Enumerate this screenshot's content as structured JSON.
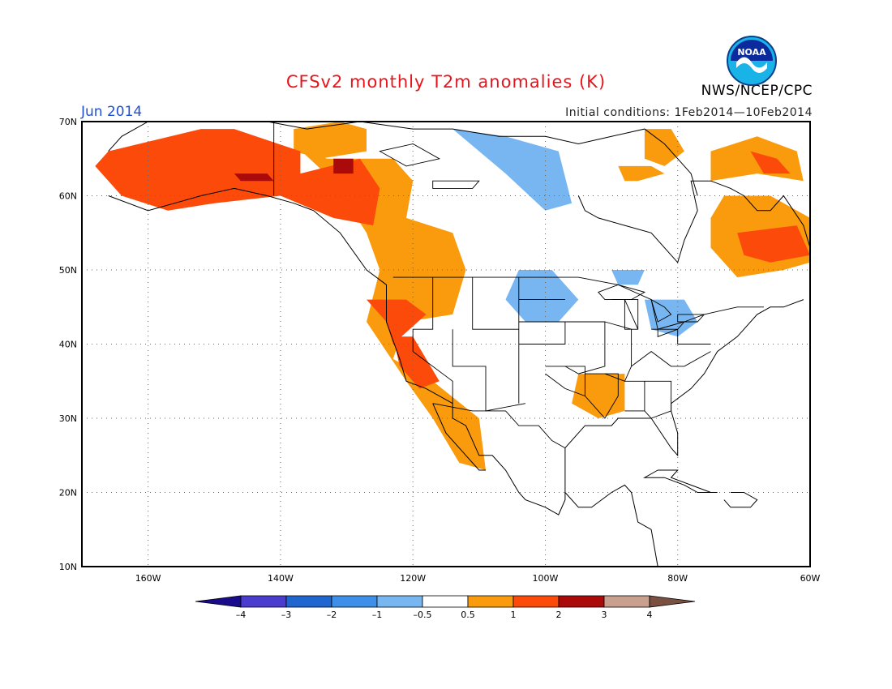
{
  "title": "CFSv2 monthly T2m anomalies (K)",
  "month": "Jun 2014",
  "initial_conditions": "Initial conditions: 1Feb2014—10Feb2014",
  "organization": "NWS/NCEP/CPC",
  "logo_text": "NOAA",
  "colors": {
    "title": "#e8141b",
    "month": "#1f4fd6",
    "bins": [
      "#1a0b8c",
      "#4a3ccf",
      "#1f66d1",
      "#3e8fe8",
      "#78b6f2",
      "#ffffff",
      "#f99b0c",
      "#fc4a0a",
      "#ab0a0a",
      "#c9a08e",
      "#7a5040"
    ]
  },
  "map": {
    "projection": "lat-lon",
    "lon_range": [
      -170,
      -60
    ],
    "lat_range": [
      10,
      70
    ],
    "lat_ticks": [
      "10N",
      "20N",
      "30N",
      "40N",
      "50N",
      "60N",
      "70N"
    ],
    "lon_ticks": [
      "160W",
      "140W",
      "120W",
      "100W",
      "80W",
      "60W"
    ],
    "grid": "dotted"
  },
  "colorbar": {
    "labels": [
      "–4",
      "–3",
      "–2",
      "–1",
      "–0.5",
      "0.5",
      "1",
      "2",
      "3",
      "4"
    ]
  },
  "anomaly_regions": [
    {
      "bin": 7,
      "lons": [
        -166,
        -152,
        -147,
        -137,
        -137,
        -128,
        -125,
        -126,
        -132,
        -140,
        -150,
        -157,
        -164,
        -168
      ],
      "lats": [
        66,
        69,
        69,
        66,
        63,
        65,
        61,
        56,
        57,
        60,
        59,
        58,
        60,
        64
      ]
    },
    {
      "bin": 7,
      "lons": [
        -127,
        -121,
        -118,
        -123,
        -124
      ],
      "lats": [
        46,
        46,
        44,
        40,
        43
      ]
    },
    {
      "bin": 7,
      "lons": [
        -123,
        -120,
        -116,
        -119,
        -122
      ],
      "lats": [
        41,
        41,
        35,
        34,
        37
      ]
    },
    {
      "bin": 7,
      "lons": [
        -71,
        -62,
        -60,
        -66,
        -70
      ],
      "lats": [
        55,
        56,
        52,
        51,
        52
      ]
    },
    {
      "bin": 7,
      "lons": [
        -69,
        -65,
        -63,
        -67
      ],
      "lats": [
        66,
        65,
        63,
        63
      ]
    },
    {
      "bin": 8,
      "lons": [
        -147,
        -142,
        -141,
        -146
      ],
      "lats": [
        63,
        63,
        62,
        62
      ]
    },
    {
      "bin": 8,
      "lons": [
        -132,
        -129,
        -129,
        -132
      ],
      "lats": [
        65,
        65,
        63,
        63
      ]
    },
    {
      "bin": 6,
      "lons": [
        -138,
        -133,
        -123,
        -120,
        -121,
        -114,
        -112,
        -114,
        -121,
        -123,
        -117,
        -110,
        -109,
        -113,
        -117,
        -121,
        -127,
        -125,
        -127,
        -132
      ],
      "lats": [
        67,
        65,
        65,
        62,
        57,
        55,
        50,
        44,
        43,
        38,
        35,
        30,
        23,
        24,
        30,
        35,
        43,
        50,
        55,
        62
      ]
    },
    {
      "bin": 6,
      "lons": [
        -138,
        -131,
        -127,
        -127,
        -134,
        -138
      ],
      "lats": [
        69,
        70,
        69,
        66,
        65,
        66
      ]
    },
    {
      "bin": 6,
      "lons": [
        -73,
        -66,
        -60,
        -60,
        -64,
        -71,
        -75,
        -75
      ],
      "lats": [
        60,
        60,
        57,
        51,
        50,
        49,
        53,
        57
      ]
    },
    {
      "bin": 6,
      "lons": [
        -75,
        -68,
        -62,
        -61,
        -68,
        -75
      ],
      "lats": [
        66,
        68,
        66,
        62,
        63,
        62
      ]
    },
    {
      "bin": 6,
      "lons": [
        -95,
        -88,
        -88,
        -92,
        -96
      ],
      "lats": [
        36,
        36,
        31,
        30,
        32
      ]
    },
    {
      "bin": 6,
      "lons": [
        -85,
        -81,
        -79,
        -82,
        -85
      ],
      "lats": [
        69,
        69,
        66,
        64,
        65
      ]
    },
    {
      "bin": 6,
      "lons": [
        -89,
        -84,
        -82,
        -86,
        -88
      ],
      "lats": [
        64,
        64,
        63,
        62,
        62
      ]
    },
    {
      "bin": 4,
      "lons": [
        -114,
        -106,
        -98,
        -96,
        -100,
        -106
      ],
      "lats": [
        69,
        68,
        66,
        59,
        58,
        63
      ]
    },
    {
      "bin": 4,
      "lons": [
        -104,
        -99,
        -95,
        -98,
        -103,
        -106
      ],
      "lats": [
        50,
        50,
        46,
        43,
        43,
        46
      ]
    },
    {
      "bin": 4,
      "lons": [
        -85,
        -79,
        -77,
        -80,
        -84
      ],
      "lats": [
        46,
        46,
        43,
        41,
        42
      ]
    },
    {
      "bin": 4,
      "lons": [
        -90,
        -85,
        -86,
        -89
      ],
      "lats": [
        50,
        50,
        48,
        48
      ]
    }
  ],
  "coastlines": [
    {
      "lons": [
        -166,
        -160,
        -156,
        -152,
        -147,
        -142,
        -138,
        -135,
        -131,
        -127,
        -124,
        -124,
        -122,
        -121,
        -118,
        -114,
        -114,
        -112,
        -110,
        -108,
        -106,
        -104,
        -103,
        -100,
        -98,
        -97,
        -97,
        -94,
        -90,
        -89,
        -86,
        -84,
        -81,
        -80,
        -80,
        -81,
        -81,
        -78,
        -76,
        -74,
        -71,
        -70,
        -68,
        -66,
        -64,
        -61
      ],
      "lats": [
        60,
        58,
        59,
        60,
        61,
        60,
        59,
        58,
        55,
        50,
        48,
        43,
        38,
        35,
        34,
        32,
        30,
        29,
        25,
        25,
        23,
        20,
        19,
        18,
        17,
        19,
        26,
        29,
        29,
        30,
        30,
        30,
        26,
        25,
        28,
        31,
        32,
        34,
        36,
        39,
        41,
        42,
        44,
        45,
        45,
        46
      ]
    },
    {
      "lons": [
        -117,
        -115,
        -112,
        -110,
        -109
      ],
      "lats": [
        32,
        28,
        25,
        23,
        23
      ]
    },
    {
      "lons": [
        -97,
        -95,
        -93,
        -90,
        -88,
        -87,
        -86,
        -84,
        -83
      ],
      "lats": [
        20,
        18,
        18,
        20,
        21,
        20,
        16,
        15,
        10
      ]
    },
    {
      "lons": [
        -166,
        -164,
        -160,
        -156,
        -152,
        -147,
        -142,
        -136,
        -128,
        -120,
        -114,
        -107,
        -100,
        -95,
        -90,
        -85,
        -82,
        -78,
        -77
      ],
      "lats": [
        66,
        68,
        70,
        71,
        71,
        70,
        70,
        69,
        70,
        69,
        69,
        68,
        68,
        67,
        68,
        69,
        67,
        63,
        60
      ]
    },
    {
      "lons": [
        -95,
        -94,
        -92,
        -88,
        -84,
        -82,
        -80,
        -79,
        -77,
        -78,
        -75,
        -72,
        -70,
        -68,
        -66,
        -64,
        -61,
        -60
      ],
      "lats": [
        60,
        58,
        57,
        56,
        55,
        53,
        51,
        54,
        58,
        62,
        62,
        61,
        60,
        58,
        58,
        60,
        56,
        53
      ]
    },
    {
      "lons": [
        -83,
        -80,
        -81,
        -78,
        -75,
        -74,
        -77,
        -79,
        -82,
        -85,
        -83
      ],
      "lats": [
        23,
        23,
        22,
        21,
        20,
        20,
        20,
        21,
        22,
        22,
        23
      ]
    },
    {
      "lons": [
        -72,
        -70,
        -68,
        -69,
        -72,
        -73
      ],
      "lats": [
        20,
        20,
        19,
        18,
        18,
        19
      ]
    }
  ],
  "borders": [
    {
      "lons": [
        -141,
        -141
      ],
      "lats": [
        60,
        70
      ]
    },
    {
      "lons": [
        -123,
        -95,
        -95,
        -89,
        -84,
        -83,
        -79,
        -79,
        -76,
        -71,
        -67
      ],
      "lats": [
        49,
        49,
        49,
        48,
        46,
        42,
        43,
        43,
        44,
        45,
        45
      ]
    },
    {
      "lons": [
        -117,
        -111,
        -108,
        -106,
        -104,
        -101,
        -99,
        -97
      ],
      "lats": [
        32,
        31,
        31,
        31,
        29,
        29,
        27,
        26
      ]
    },
    {
      "lons": [
        -117,
        -117,
        -120,
        -120,
        -114,
        -114
      ],
      "lats": [
        49,
        42,
        42,
        39,
        35,
        32
      ]
    },
    {
      "lons": [
        -111,
        -111,
        -111,
        -104,
        -104,
        -104,
        -104
      ],
      "lats": [
        49,
        45,
        42,
        42,
        37,
        32,
        49
      ]
    },
    {
      "lons": [
        -114,
        -114,
        -109,
        -109,
        -103
      ],
      "lats": [
        42,
        37,
        37,
        31,
        32
      ]
    },
    {
      "lons": [
        -104,
        -97,
        -97,
        -104
      ],
      "lats": [
        43,
        43,
        40,
        40
      ]
    },
    {
      "lons": [
        -104,
        -97
      ],
      "lats": [
        46,
        46
      ]
    },
    {
      "lons": [
        -100,
        -94,
        -94,
        -97,
        -100
      ],
      "lats": [
        37,
        37,
        33,
        34,
        36
      ]
    },
    {
      "lons": [
        -97,
        -91,
        -91,
        -95,
        -97
      ],
      "lats": [
        43,
        43,
        37,
        36,
        37
      ]
    },
    {
      "lons": [
        -94,
        -89,
        -89,
        -91,
        -94
      ],
      "lats": [
        36,
        36,
        33,
        30,
        33
      ]
    },
    {
      "lons": [
        -91,
        -87,
        -87,
        -88,
        -91
      ],
      "lats": [
        43,
        42,
        37,
        35,
        36
      ]
    },
    {
      "lons": [
        -88,
        -85,
        -85,
        -88
      ],
      "lats": [
        35,
        35,
        31,
        31
      ]
    },
    {
      "lons": [
        -85,
        -81,
        -81,
        -84,
        -85
      ],
      "lats": [
        35,
        35,
        31,
        30,
        31
      ]
    },
    {
      "lons": [
        -87,
        -84,
        -81,
        -79,
        -75
      ],
      "lats": [
        37,
        39,
        37,
        37,
        39
      ]
    },
    {
      "lons": [
        -84,
        -80,
        -80,
        -75
      ],
      "lats": [
        42,
        42,
        40,
        40
      ]
    },
    {
      "lons": [
        -90,
        -88,
        -86
      ],
      "lats": [
        46,
        46,
        42
      ]
    }
  ],
  "lakes": [
    {
      "lons": [
        -92,
        -89,
        -85,
        -87,
        -91
      ],
      "lats": [
        47,
        48,
        47,
        46,
        46
      ]
    },
    {
      "lons": [
        -88,
        -86,
        -86,
        -88
      ],
      "lats": [
        46,
        46,
        42,
        42
      ]
    },
    {
      "lons": [
        -84,
        -82,
        -81,
        -83
      ],
      "lats": [
        46,
        45,
        44,
        43
      ]
    },
    {
      "lons": [
        -83,
        -79,
        -80,
        -83
      ],
      "lats": [
        42,
        43,
        42,
        41
      ]
    },
    {
      "lons": [
        -80,
        -76,
        -77,
        -80
      ],
      "lats": [
        44,
        44,
        43,
        43
      ]
    },
    {
      "lons": [
        -125,
        -120,
        -116,
        -121
      ],
      "lats": [
        66,
        67,
        65,
        64
      ]
    },
    {
      "lons": [
        -117,
        -110,
        -111,
        -117
      ],
      "lats": [
        62,
        62,
        61,
        61
      ]
    }
  ]
}
